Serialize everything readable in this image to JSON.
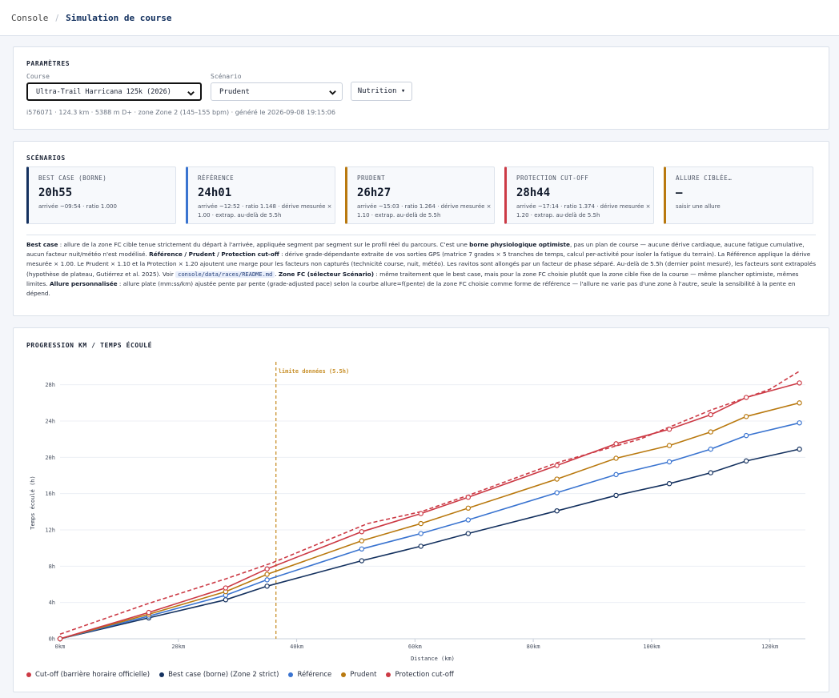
{
  "breadcrumb": {
    "root": "Console",
    "separator": "/",
    "current": "Simulation de course"
  },
  "params": {
    "title": "PARAMÈTRES",
    "course_label": "Course",
    "course_value": "Ultra-Trail Harricana 125k (2026)",
    "scenario_label": "Scénario",
    "scenario_value": "Prudent",
    "nutrition_label": "Nutrition ▾",
    "meta": "i576071 · 124.3 km · 5388 m D+ · zone Zone 2 (145–155 bpm) · généré le 2026-09-08 19:15:06"
  },
  "scenarios": {
    "title": "SCÉNARIOS",
    "cards": [
      {
        "name": "BEST CASE (BORNE)",
        "time": "20h55",
        "detail": "arrivée ~09:54 · ratio 1.000",
        "color": "#14315f"
      },
      {
        "name": "RÉFÉRENCE",
        "time": "24h01",
        "detail": "arrivée ~12:52 · ratio 1.148 · dérive mesurée × 1.00 · extrap. au-delà de 5.5h",
        "color": "#3a74d0"
      },
      {
        "name": "PRUDENT",
        "time": "26h27",
        "detail": "arrivée ~15:03 · ratio 1.264 · dérive mesurée × 1.10 · extrap. au-delà de 5.5h",
        "color": "#b9790f"
      },
      {
        "name": "PROTECTION CUT-OFF",
        "time": "28h44",
        "detail": "arrivée ~17:14 · ratio 1.374 · dérive mesurée × 1.20 · extrap. au-delà de 5.5h",
        "color": "#cc3a45"
      },
      {
        "name": "ALLURE CIBLÉE…",
        "time": "—",
        "detail": "saisir une allure",
        "color": "#b9790f"
      }
    ],
    "desc": {
      "p1_b": "Best case",
      "p1": " : allure de la zone FC cible tenue strictement du départ à l'arrivée, appliquée segment par segment sur le profil réel du parcours. C'est une ",
      "p2_b": "borne physiologique optimiste",
      "p2": ", pas un plan de course — aucune dérive cardiaque, aucune fatigue cumulative, aucun facteur nuit/météo n'est modélisé. ",
      "p3_b": "Référence / Prudent / Protection cut-off",
      "p3": " : dérive grade-dépendante extraite de vos sorties GPS (matrice 7 grades × 5 tranches de temps, calcul per-activité pour isoler la fatigue du terrain). La Référence applique la dérive mesurée × 1.00. Le Prudent × 1.10 et la Protection × 1.20 ajoutent une marge pour les facteurs non capturés (technicité course, nuit, météo). Les ravitos sont allongés par un facteur de phase séparé. Au-delà de 5.5h (dernier point mesuré), les facteurs sont extrapolés (hypothèse de plateau, Gutiérrez et al. 2025). Voir ",
      "code": "console/data/races/README.md",
      "p4": ". ",
      "p4_b": "Zone FC (sélecteur Scénario)",
      "p5": " : même traitement que le best case, mais pour la zone FC choisie plutôt que la zone cible fixe de la course — même plancher optimiste, mêmes limites. ",
      "p5_b": "Allure personnalisée",
      "p6": " : allure plate (mm:ss/km) ajustée pente par pente (grade-adjusted pace) selon la courbe allure=f(pente) de la zone FC choisie comme forme de référence — l'allure ne varie pas d'une zone à l'autre, seule la sensibilité à la pente en dépend."
    }
  },
  "chart_card": {
    "title": "PROGRESSION KM / TEMPS ÉCOULÉ"
  },
  "chart_data": {
    "type": "line",
    "xlabel": "Distance (km)",
    "ylabel": "Temps écoulé (h)",
    "xlim": [
      0,
      126
    ],
    "ylim": [
      0,
      30
    ],
    "x_ticks": [
      0,
      20,
      40,
      60,
      80,
      100,
      120
    ],
    "x_tick_labels": [
      "0km",
      "20km",
      "40km",
      "60km",
      "80km",
      "100km",
      "120km"
    ],
    "y_ticks": [
      0,
      4,
      8,
      12,
      16,
      20,
      24,
      28
    ],
    "y_tick_labels": [
      "0h",
      "4h",
      "8h",
      "12h",
      "16h",
      "20h",
      "24h",
      "28h"
    ],
    "grid": "horizontal",
    "legend_position": "bottom-left",
    "annotation": {
      "x": 36.5,
      "label": "limite données (5.5h)",
      "color": "#c8902a"
    },
    "series": [
      {
        "name": "Cut-off (barrière horaire officielle)",
        "color": "#cc3a45",
        "style": "dashed",
        "markers": false,
        "x": [
          0,
          15,
          28,
          36,
          52,
          61,
          69,
          84,
          98,
          110,
          120,
          125
        ],
        "y": [
          0.5,
          3.9,
          6.6,
          8.4,
          12.7,
          14.0,
          15.8,
          19.4,
          22.0,
          25.2,
          27.5,
          29.5
        ]
      },
      {
        "name": "Best case (borne) (Zone 2 strict)",
        "color": "#14315f",
        "style": "solid",
        "markers": true,
        "x": [
          0,
          15,
          28,
          35,
          51,
          61,
          69,
          84,
          94,
          103,
          110,
          116,
          125
        ],
        "y": [
          0,
          2.3,
          4.3,
          5.8,
          8.6,
          10.2,
          11.6,
          14.1,
          15.8,
          17.1,
          18.3,
          19.6,
          20.9
        ]
      },
      {
        "name": "Référence",
        "color": "#3a74d0",
        "style": "solid",
        "markers": true,
        "x": [
          0,
          15,
          28,
          35,
          51,
          61,
          69,
          84,
          94,
          103,
          110,
          116,
          125
        ],
        "y": [
          0,
          2.5,
          4.8,
          6.5,
          9.9,
          11.6,
          13.1,
          16.1,
          18.1,
          19.5,
          20.9,
          22.4,
          23.8
        ]
      },
      {
        "name": "Prudent",
        "color": "#b9790f",
        "style": "solid",
        "markers": true,
        "x": [
          0,
          15,
          28,
          35,
          51,
          61,
          69,
          84,
          94,
          103,
          110,
          116,
          125
        ],
        "y": [
          0,
          2.7,
          5.2,
          7.1,
          10.8,
          12.7,
          14.4,
          17.6,
          19.9,
          21.3,
          22.8,
          24.5,
          26.0
        ]
      },
      {
        "name": "Protection cut-off",
        "color": "#cc3a45",
        "style": "solid",
        "markers": true,
        "x": [
          0,
          15,
          28,
          35,
          51,
          61,
          69,
          84,
          94,
          103,
          110,
          116,
          125
        ],
        "y": [
          0,
          2.9,
          5.6,
          7.7,
          11.8,
          13.8,
          15.6,
          19.1,
          21.5,
          23.1,
          24.7,
          26.6,
          28.2
        ]
      }
    ]
  }
}
